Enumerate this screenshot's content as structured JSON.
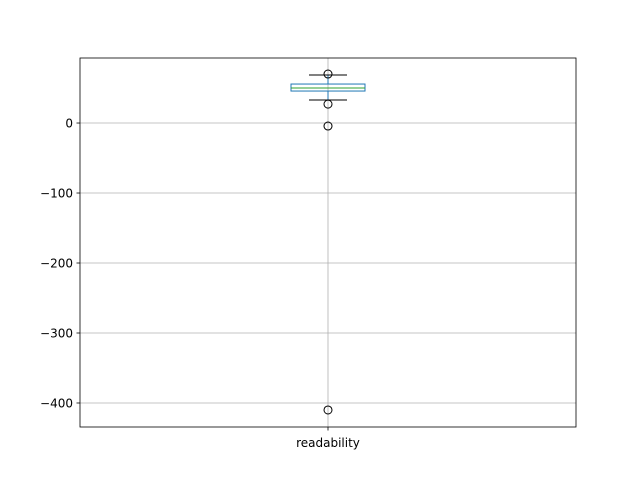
{
  "chart_data": {
    "type": "box",
    "categories": [
      "readability"
    ],
    "boxes": [
      {
        "whislo": 32.9,
        "q1": 45.7,
        "median": 50,
        "q3": 55.7,
        "whishi": 68.6,
        "fliers": [
          70,
          27,
          -4.3,
          -410
        ]
      }
    ],
    "ylim": [
      -434.3,
      92.9
    ],
    "yticks": [
      {
        "value": -400,
        "label": "−400"
      },
      {
        "value": -300,
        "label": "−300"
      },
      {
        "value": -200,
        "label": "−200"
      },
      {
        "value": -100,
        "label": "−100"
      },
      0
    ],
    "grid": true,
    "box_color": "#1f77b4",
    "median_color": "#2ca02c",
    "cap_color": "#000000"
  }
}
